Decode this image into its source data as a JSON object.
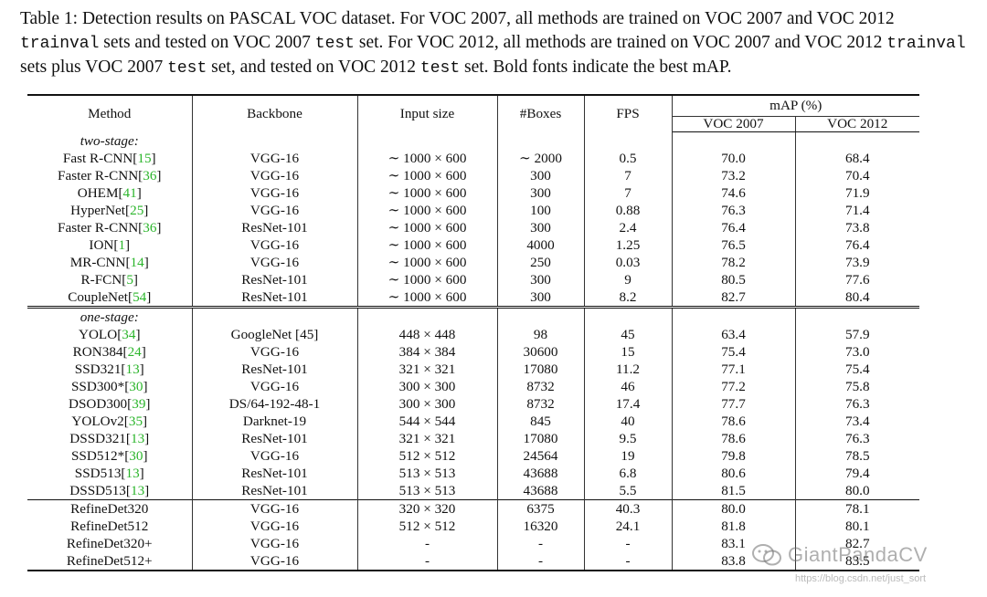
{
  "caption": {
    "seg1": "Table 1: Detection results on PASCAL VOC dataset. For VOC 2007, all methods are trained on VOC 2007 and VOC 2012 ",
    "mono1": "trainval",
    "seg2": " sets and tested on VOC 2007 ",
    "mono2": "test",
    "seg3": " set. For VOC 2012, all methods are trained on VOC 2007 and VOC 2012 ",
    "mono3": "trainval",
    "seg4": " sets plus VOC 2007 ",
    "mono4": "test",
    "seg5": " set, and tested on VOC 2012 ",
    "mono5": "test",
    "seg6": " set. Bold fonts indicate the best mAP."
  },
  "headers": {
    "method": "Method",
    "backbone": "Backbone",
    "input_size": "Input size",
    "boxes": "#Boxes",
    "fps": "FPS",
    "map": "mAP (%)",
    "voc2007": "VOC 2007",
    "voc2012": "VOC 2012"
  },
  "groups": {
    "two_stage": "two-stage:",
    "one_stage": "one-stage:"
  },
  "two_stage_rows": [
    {
      "name": "Fast R-CNN",
      "ref": "15",
      "backbone": "VGG-16",
      "input": "∼ 1000 × 600",
      "boxes": "∼ 2000",
      "fps": "0.5",
      "voc2007": "70.0",
      "voc2012": "68.4"
    },
    {
      "name": "Faster R-CNN",
      "ref": "36",
      "backbone": "VGG-16",
      "input": "∼ 1000 × 600",
      "boxes": "300",
      "fps": "7",
      "voc2007": "73.2",
      "voc2012": "70.4"
    },
    {
      "name": "OHEM",
      "ref": "41",
      "backbone": "VGG-16",
      "input": "∼ 1000 × 600",
      "boxes": "300",
      "fps": "7",
      "voc2007": "74.6",
      "voc2012": "71.9"
    },
    {
      "name": "HyperNet",
      "ref": "25",
      "backbone": "VGG-16",
      "input": "∼ 1000 × 600",
      "boxes": "100",
      "fps": "0.88",
      "voc2007": "76.3",
      "voc2012": "71.4"
    },
    {
      "name": "Faster R-CNN",
      "ref": "36",
      "backbone": "ResNet-101",
      "input": "∼ 1000 × 600",
      "boxes": "300",
      "fps": "2.4",
      "voc2007": "76.4",
      "voc2012": "73.8"
    },
    {
      "name": "ION",
      "ref": "1",
      "backbone": "VGG-16",
      "input": "∼ 1000 × 600",
      "boxes": "4000",
      "fps": "1.25",
      "voc2007": "76.5",
      "voc2012": "76.4"
    },
    {
      "name": "MR-CNN",
      "ref": "14",
      "backbone": "VGG-16",
      "input": "∼ 1000 × 600",
      "boxes": "250",
      "fps": "0.03",
      "voc2007": "78.2",
      "voc2012": "73.9"
    },
    {
      "name": "R-FCN",
      "ref": "5",
      "backbone": "ResNet-101",
      "input": "∼ 1000 × 600",
      "boxes": "300",
      "fps": "9",
      "voc2007": "80.5",
      "voc2012": "77.6"
    },
    {
      "name": "CoupleNet",
      "ref": "54",
      "backbone": "ResNet-101",
      "input": "∼ 1000 × 600",
      "boxes": "300",
      "fps": "8.2",
      "voc2007": "82.7",
      "voc2012": "80.4"
    }
  ],
  "one_stage_rows": [
    {
      "name": "YOLO",
      "ref": "34",
      "backbone": "GoogleNet [45]",
      "input": "448 × 448",
      "boxes": "98",
      "fps": "45",
      "voc2007": "63.4",
      "voc2012": "57.9"
    },
    {
      "name": "RON384",
      "ref": "24",
      "backbone": "VGG-16",
      "input": "384 × 384",
      "boxes": "30600",
      "fps": "15",
      "voc2007": "75.4",
      "voc2012": "73.0"
    },
    {
      "name": "SSD321",
      "ref": "13",
      "backbone": "ResNet-101",
      "input": "321 × 321",
      "boxes": "17080",
      "fps": "11.2",
      "voc2007": "77.1",
      "voc2012": "75.4"
    },
    {
      "name": "SSD300*",
      "ref": "30",
      "backbone": "VGG-16",
      "input": "300 × 300",
      "boxes": "8732",
      "fps": "46",
      "voc2007": "77.2",
      "voc2012": "75.8"
    },
    {
      "name": "DSOD300",
      "ref": "39",
      "backbone": "DS/64-192-48-1",
      "input": "300 × 300",
      "boxes": "8732",
      "fps": "17.4",
      "voc2007": "77.7",
      "voc2012": "76.3"
    },
    {
      "name": "YOLOv2",
      "ref": "35",
      "backbone": "Darknet-19",
      "input": "544 × 544",
      "boxes": "845",
      "fps": "40",
      "voc2007": "78.6",
      "voc2012": "73.4"
    },
    {
      "name": "DSSD321",
      "ref": "13",
      "backbone": "ResNet-101",
      "input": "321 × 321",
      "boxes": "17080",
      "fps": "9.5",
      "voc2007": "78.6",
      "voc2012": "76.3"
    },
    {
      "name": "SSD512*",
      "ref": "30",
      "backbone": "VGG-16",
      "input": "512 × 512",
      "boxes": "24564",
      "fps": "19",
      "voc2007": "79.8",
      "voc2012": "78.5"
    },
    {
      "name": "SSD513",
      "ref": "13",
      "backbone": "ResNet-101",
      "input": "513 × 513",
      "boxes": "43688",
      "fps": "6.8",
      "voc2007": "80.6",
      "voc2012": "79.4"
    },
    {
      "name": "DSSD513",
      "ref": "13",
      "backbone": "ResNet-101",
      "input": "513 × 513",
      "boxes": "43688",
      "fps": "5.5",
      "voc2007": "81.5",
      "voc2012": "80.0"
    }
  ],
  "refinedet_rows": [
    {
      "name": "RefineDet320",
      "ref": "",
      "backbone": "VGG-16",
      "input": "320 × 320",
      "boxes": "6375",
      "fps": "40.3",
      "voc2007": "80.0",
      "voc2012": "78.1"
    },
    {
      "name": "RefineDet512",
      "ref": "",
      "backbone": "VGG-16",
      "input": "512 × 512",
      "boxes": "16320",
      "fps": "24.1",
      "voc2007": "81.8",
      "voc2012": "80.1"
    },
    {
      "name": "RefineDet320+",
      "ref": "",
      "backbone": "VGG-16",
      "input": "-",
      "boxes": "-",
      "fps": "-",
      "voc2007": "83.1",
      "voc2012": "82.7"
    },
    {
      "name": "RefineDet512+",
      "ref": "",
      "backbone": "VGG-16",
      "input": "-",
      "boxes": "-",
      "fps": "-",
      "voc2007": "83.8",
      "voc2012": "83.5",
      "bold": true
    }
  ],
  "watermark": {
    "text": "GiantPandaCV",
    "url": "https://blog.csdn.net/just_sort"
  },
  "colors": {
    "ref_link": "#2bb52b",
    "rule": "#111111"
  }
}
